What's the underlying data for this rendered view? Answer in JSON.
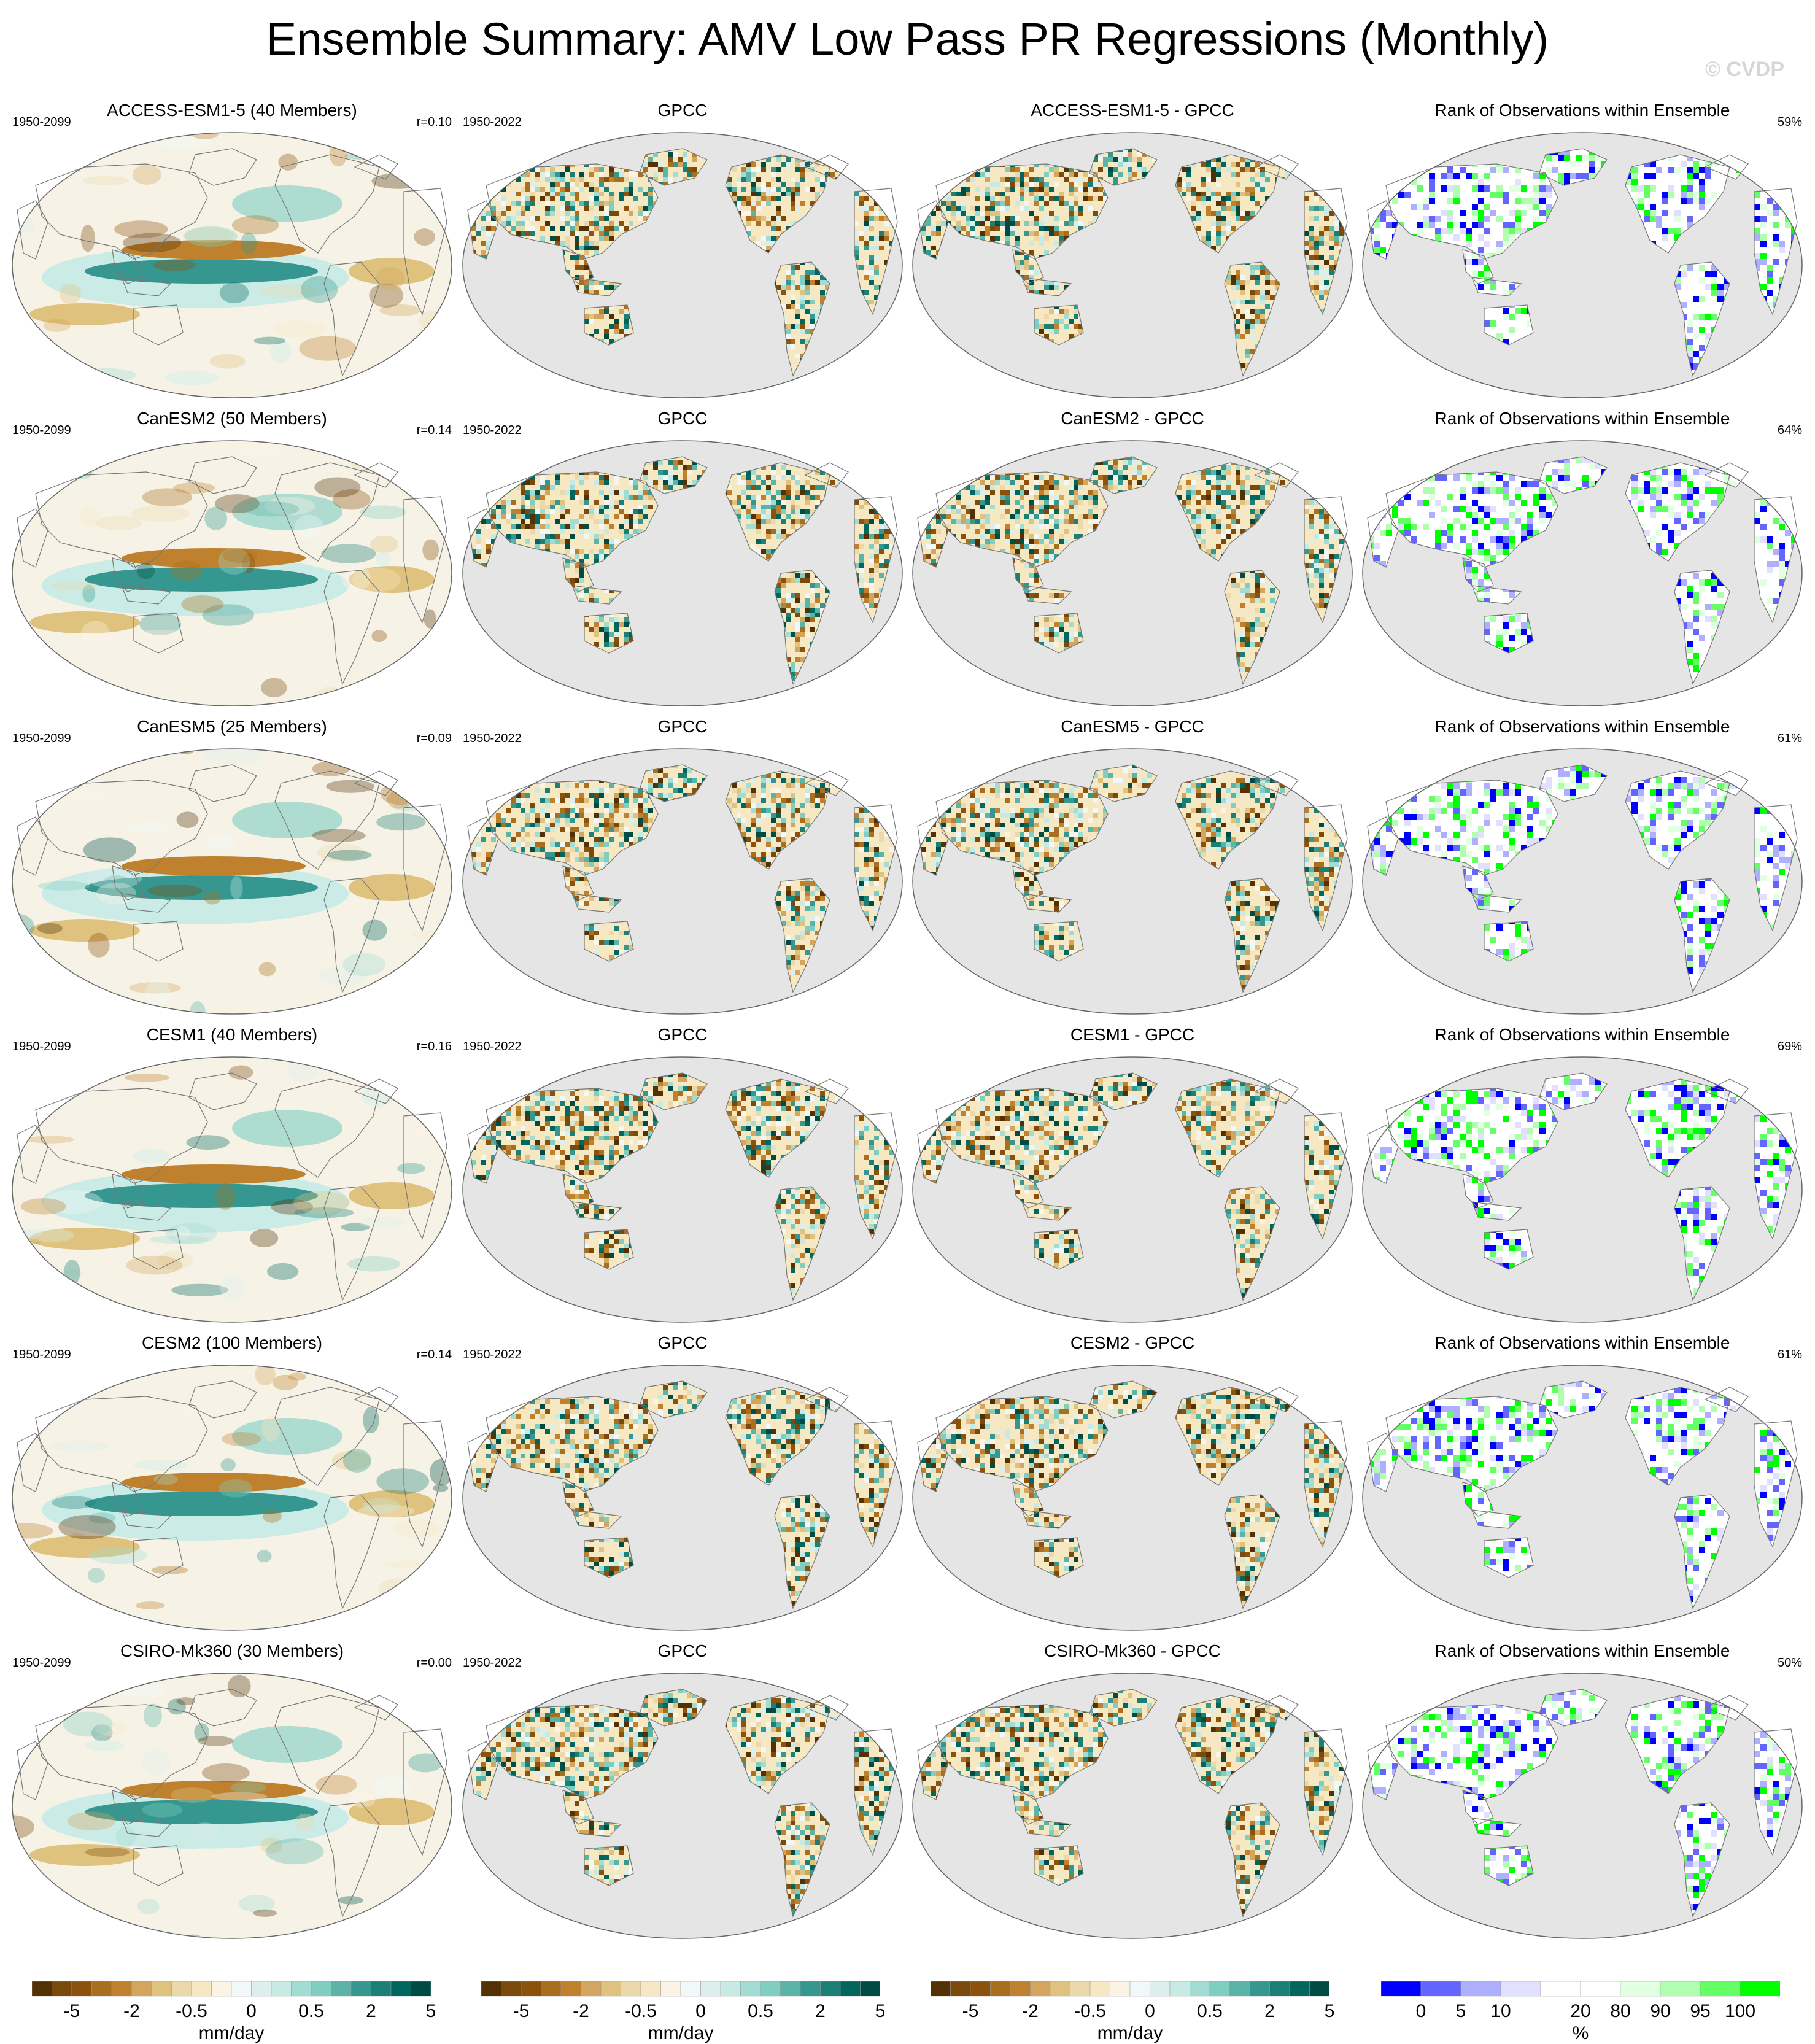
{
  "title": "Ensemble Summary: AMV Low Pass PR Regressions (Monthly)",
  "watermark": "© CVDP",
  "chart_data": {
    "type": "map-panels",
    "rows": [
      {
        "model": "ACCESS-ESM1-5 (40 Members)",
        "period": "1950-2099",
        "r": "r=0.10",
        "obs_title": "GPCC",
        "obs_period": "1950-2022",
        "diff_title": "ACCESS-ESM1-5 - GPCC",
        "rank_title": "Rank of Observations within Ensemble",
        "rank_pct": "59%"
      },
      {
        "model": "CanESM2 (50 Members)",
        "period": "1950-2099",
        "r": "r=0.14",
        "obs_title": "GPCC",
        "obs_period": "1950-2022",
        "diff_title": "CanESM2 - GPCC",
        "rank_title": "Rank of Observations within Ensemble",
        "rank_pct": "64%"
      },
      {
        "model": "CanESM5 (25 Members)",
        "period": "1950-2099",
        "r": "r=0.09",
        "obs_title": "GPCC",
        "obs_period": "1950-2022",
        "diff_title": "CanESM5 - GPCC",
        "rank_title": "Rank of Observations within Ensemble",
        "rank_pct": "61%"
      },
      {
        "model": "CESM1 (40 Members)",
        "period": "1950-2099",
        "r": "r=0.16",
        "obs_title": "GPCC",
        "obs_period": "1950-2022",
        "diff_title": "CESM1 - GPCC",
        "rank_title": "Rank of Observations within Ensemble",
        "rank_pct": "69%"
      },
      {
        "model": "CESM2 (100 Members)",
        "period": "1950-2099",
        "r": "r=0.14",
        "obs_title": "GPCC",
        "obs_period": "1950-2022",
        "diff_title": "CESM2 - GPCC",
        "rank_title": "Rank of Observations within Ensemble",
        "rank_pct": "61%"
      },
      {
        "model": "CSIRO-Mk360 (30 Members)",
        "period": "1950-2099",
        "r": "r=0.00",
        "obs_title": "GPCC",
        "obs_period": "1950-2022",
        "diff_title": "CSIRO-Mk360 - GPCC",
        "rank_title": "Rank of Observations within Ensemble",
        "rank_pct": "50%"
      }
    ],
    "colorbars": [
      {
        "units": "mm/day",
        "ticks": [
          "-5",
          "-2",
          "-0.5",
          "0",
          "0.5",
          "2",
          "5"
        ],
        "colors": [
          "#543005",
          "#7a4a0c",
          "#8c510a",
          "#a86f1e",
          "#bf812d",
          "#d4a55f",
          "#dfc27d",
          "#ecd9ab",
          "#f6e8c3",
          "#fbf4e4",
          "#f1f8f7",
          "#dcefec",
          "#c7eae5",
          "#a3dcd3",
          "#80cdc1",
          "#5ab4a8",
          "#35978f",
          "#1c7f76",
          "#01665e",
          "#004c44"
        ]
      },
      {
        "units": "mm/day",
        "ticks": [
          "-5",
          "-2",
          "-0.5",
          "0",
          "0.5",
          "2",
          "5"
        ],
        "colors": [
          "#543005",
          "#7a4a0c",
          "#8c510a",
          "#a86f1e",
          "#bf812d",
          "#d4a55f",
          "#dfc27d",
          "#ecd9ab",
          "#f6e8c3",
          "#fbf4e4",
          "#f1f8f7",
          "#dcefec",
          "#c7eae5",
          "#a3dcd3",
          "#80cdc1",
          "#5ab4a8",
          "#35978f",
          "#1c7f76",
          "#01665e",
          "#004c44"
        ]
      },
      {
        "units": "mm/day",
        "ticks": [
          "-5",
          "-2",
          "-0.5",
          "0",
          "0.5",
          "2",
          "5"
        ],
        "colors": [
          "#543005",
          "#7a4a0c",
          "#8c510a",
          "#a86f1e",
          "#bf812d",
          "#d4a55f",
          "#dfc27d",
          "#ecd9ab",
          "#f6e8c3",
          "#fbf4e4",
          "#f1f8f7",
          "#dcefec",
          "#c7eae5",
          "#a3dcd3",
          "#80cdc1",
          "#5ab4a8",
          "#35978f",
          "#1c7f76",
          "#01665e",
          "#004c44"
        ]
      },
      {
        "units": "%",
        "ticks": [
          "0",
          "5",
          "10",
          "20",
          "80",
          "90",
          "95",
          "100"
        ],
        "colors": [
          "#0000ff",
          "#6464ff",
          "#afafff",
          "#e1e1ff",
          "#ffffff",
          "#ffffff",
          "#e1ffe1",
          "#afffaf",
          "#64ff64",
          "#00ff00"
        ]
      }
    ]
  }
}
